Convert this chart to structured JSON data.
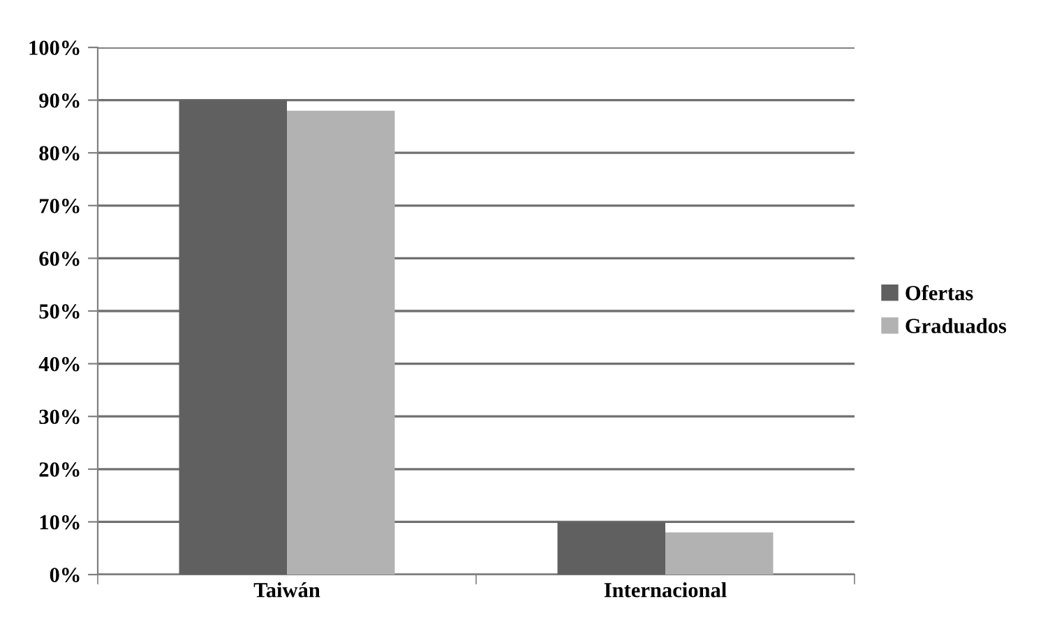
{
  "chart_data": {
    "type": "bar",
    "categories": [
      "Taiwán",
      "Internacional"
    ],
    "series": [
      {
        "name": "Ofertas",
        "color": "#606060",
        "values": [
          90,
          10
        ]
      },
      {
        "name": "Graduados",
        "color": "#b2b2b2",
        "values": [
          88,
          8
        ]
      }
    ],
    "ylim": [
      0,
      100
    ],
    "yticks": [
      {
        "value": 0,
        "label": "0%"
      },
      {
        "value": 10,
        "label": "10%"
      },
      {
        "value": 20,
        "label": "20%"
      },
      {
        "value": 30,
        "label": "30%"
      },
      {
        "value": 40,
        "label": "40%"
      },
      {
        "value": 50,
        "label": "50%"
      },
      {
        "value": 60,
        "label": "60%"
      },
      {
        "value": 70,
        "label": "70%"
      },
      {
        "value": 80,
        "label": "80%"
      },
      {
        "value": 90,
        "label": "90%"
      },
      {
        "value": 100,
        "label": "100%"
      }
    ],
    "grid": "y",
    "legend": "right"
  }
}
